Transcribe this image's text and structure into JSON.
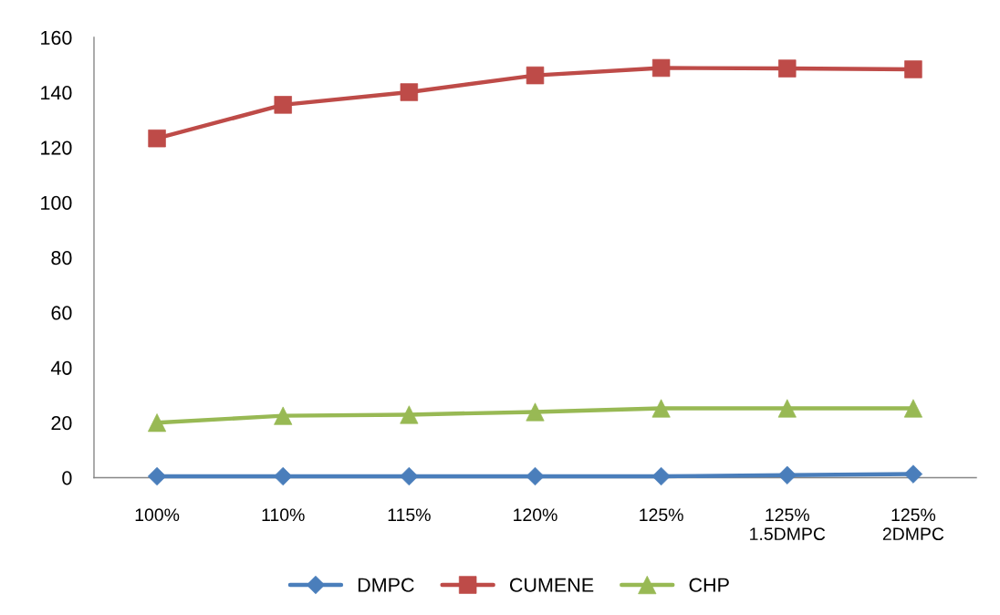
{
  "chart_data": {
    "type": "line",
    "categories": [
      "100%",
      "110%",
      "115%",
      "120%",
      "125%",
      "125%\n1.5DMPC",
      "125%\n2DMPC"
    ],
    "series": [
      {
        "name": "DMPC",
        "color": "#4a7ebb",
        "marker": "diamond",
        "values": [
          0.5,
          0.5,
          0.5,
          0.5,
          0.5,
          0.9,
          1.3
        ]
      },
      {
        "name": "CUMENE",
        "color": "#be4b48",
        "marker": "square",
        "values": [
          123.3,
          135.5,
          140.1,
          146.2,
          148.9,
          148.7,
          148.4
        ]
      },
      {
        "name": "CHP",
        "color": "#98b954",
        "marker": "triangle",
        "values": [
          20.0,
          22.5,
          22.9,
          23.9,
          25.2,
          25.2,
          25.2
        ]
      }
    ],
    "ylim": [
      0,
      160
    ],
    "yticks": [
      0,
      20,
      40,
      60,
      80,
      100,
      120,
      140,
      160
    ],
    "line_style": "solid",
    "legend": "bottom"
  }
}
